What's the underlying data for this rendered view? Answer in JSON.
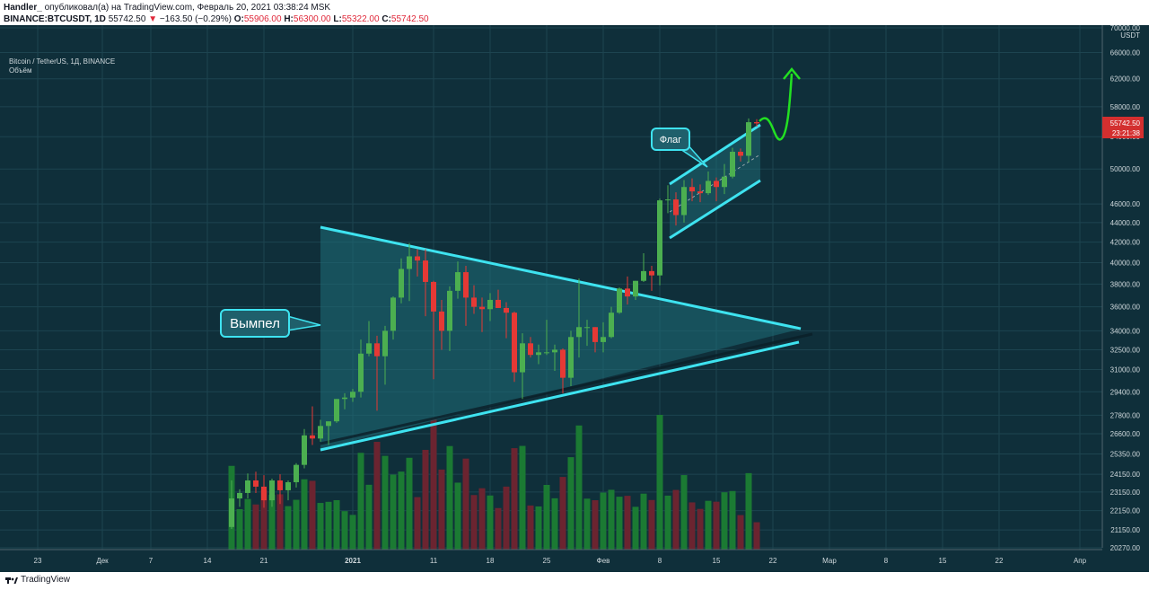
{
  "header": {
    "line1_user": "Handler_",
    "line1_rest": "опубликовал(а) на TradingView.com, Февраль 20, 2021 03:38:24 MSK",
    "line2_symbol": "BINANCE:BTCUSDT, 1D",
    "line2_last": "55742.50",
    "line2_arrow": "▼",
    "line2_change": "−163.50 (−0.29%)",
    "o_label": "O:",
    "o_value": "55906.00",
    "h_label": "H:",
    "h_value": "56300.00",
    "l_label": "L:",
    "l_value": "55322.00",
    "c_label": "C:",
    "c_value": "55742.50"
  },
  "legend": {
    "title": "Bitcoin / TetherUS, 1Д, BINANCE",
    "volume": "Объём"
  },
  "footer": {
    "brand": "TradingView"
  },
  "colors": {
    "bg": "#0f2f3a",
    "up": "#4caf50",
    "down": "#e53935",
    "vol_up": "#1b7a33",
    "vol_down": "#6b2430",
    "pattern_line": "#3ee3f0",
    "pattern_fill": "#1f6e78",
    "forecast": "#22e022",
    "label_bg": "#1f5f6b"
  },
  "chart_data": {
    "type": "candlestick",
    "title": "Bitcoin / TetherUS, 1Д, BINANCE",
    "ylabel": "USDT",
    "y_scale": "log",
    "ylim": [
      20270,
      70000
    ],
    "y_ticks": [
      {
        "value": 70000,
        "label": "70000.00"
      },
      {
        "value": 66000,
        "label": "66000.00"
      },
      {
        "value": 62000,
        "label": "62000.00"
      },
      {
        "value": 58000,
        "label": "58000.00"
      },
      {
        "value": 54000,
        "label": "54000.00"
      },
      {
        "value": 50000,
        "label": "50000.00"
      },
      {
        "value": 46000,
        "label": "46000.00"
      },
      {
        "value": 44000,
        "label": "44000.00"
      },
      {
        "value": 42000,
        "label": "42000.00"
      },
      {
        "value": 40000,
        "label": "40000.00"
      },
      {
        "value": 38000,
        "label": "38000.00"
      },
      {
        "value": 36000,
        "label": "36000.00"
      },
      {
        "value": 34000,
        "label": "34000.00"
      },
      {
        "value": 32500,
        "label": "32500.00"
      },
      {
        "value": 31000,
        "label": "31000.00"
      },
      {
        "value": 29400,
        "label": "29400.00"
      },
      {
        "value": 27800,
        "label": "27800.00"
      },
      {
        "value": 26600,
        "label": "26600.00"
      },
      {
        "value": 25350,
        "label": "25350.00"
      },
      {
        "value": 24150,
        "label": "24150.00"
      },
      {
        "value": 23150,
        "label": "23150.00"
      },
      {
        "value": 22150,
        "label": "22150.00"
      },
      {
        "value": 21150,
        "label": "21150.00"
      },
      {
        "value": 20270,
        "label": "20270.00"
      }
    ],
    "x_ticks": [
      {
        "date": "2020-11-23",
        "label": "23"
      },
      {
        "date": "2020-12-01",
        "label": "Дек"
      },
      {
        "date": "2020-12-07",
        "label": "7"
      },
      {
        "date": "2020-12-14",
        "label": "14"
      },
      {
        "date": "2020-12-21",
        "label": "21"
      },
      {
        "date": "2021-01-01",
        "label": "2021"
      },
      {
        "date": "2021-01-11",
        "label": "11"
      },
      {
        "date": "2021-01-18",
        "label": "18"
      },
      {
        "date": "2021-01-25",
        "label": "25"
      },
      {
        "date": "2021-02-01",
        "label": "Фев"
      },
      {
        "date": "2021-02-08",
        "label": "8"
      },
      {
        "date": "2021-02-15",
        "label": "15"
      },
      {
        "date": "2021-02-22",
        "label": "22"
      },
      {
        "date": "2021-03-01",
        "label": "Мар"
      },
      {
        "date": "2021-03-08",
        "label": "8"
      },
      {
        "date": "2021-03-15",
        "label": "15"
      },
      {
        "date": "2021-03-22",
        "label": "22"
      },
      {
        "date": "2021-04-01",
        "label": "Апр"
      }
    ],
    "price_badge": {
      "value": "55742.50",
      "countdown": "23:21:38"
    },
    "annotations": [
      {
        "text": "Вымпел"
      },
      {
        "text": "Флаг"
      }
    ],
    "candles": [
      {
        "date": "2020-12-17",
        "o": 21300,
        "h": 23800,
        "l": 21200,
        "c": 22800
      },
      {
        "date": "2020-12-18",
        "o": 22800,
        "h": 23300,
        "l": 22350,
        "c": 23100
      },
      {
        "date": "2020-12-19",
        "o": 23100,
        "h": 24200,
        "l": 22800,
        "c": 23800
      },
      {
        "date": "2020-12-20",
        "o": 23800,
        "h": 24300,
        "l": 23100,
        "c": 23450
      },
      {
        "date": "2020-12-21",
        "o": 23450,
        "h": 24100,
        "l": 22300,
        "c": 22700
      },
      {
        "date": "2020-12-22",
        "o": 22700,
        "h": 23900,
        "l": 22350,
        "c": 23800
      },
      {
        "date": "2020-12-23",
        "o": 23800,
        "h": 24150,
        "l": 22500,
        "c": 23250
      },
      {
        "date": "2020-12-24",
        "o": 23250,
        "h": 23800,
        "l": 22700,
        "c": 23700
      },
      {
        "date": "2020-12-25",
        "o": 23700,
        "h": 24800,
        "l": 23400,
        "c": 24700
      },
      {
        "date": "2020-12-26",
        "o": 24700,
        "h": 26900,
        "l": 24500,
        "c": 26500
      },
      {
        "date": "2020-12-27",
        "o": 26500,
        "h": 28400,
        "l": 25900,
        "c": 26300
      },
      {
        "date": "2020-12-28",
        "o": 26300,
        "h": 27500,
        "l": 26100,
        "c": 27100
      },
      {
        "date": "2020-12-29",
        "o": 27100,
        "h": 27400,
        "l": 25900,
        "c": 27400
      },
      {
        "date": "2020-12-30",
        "o": 27400,
        "h": 28900,
        "l": 27300,
        "c": 28900
      },
      {
        "date": "2020-12-31",
        "o": 28900,
        "h": 29300,
        "l": 28200,
        "c": 29000
      },
      {
        "date": "2021-01-01",
        "o": 29000,
        "h": 29600,
        "l": 28700,
        "c": 29400
      },
      {
        "date": "2021-01-02",
        "o": 29400,
        "h": 33300,
        "l": 29000,
        "c": 32200
      },
      {
        "date": "2021-01-03",
        "o": 32200,
        "h": 34800,
        "l": 32000,
        "c": 33000
      },
      {
        "date": "2021-01-04",
        "o": 33000,
        "h": 33600,
        "l": 28100,
        "c": 32000
      },
      {
        "date": "2021-01-05",
        "o": 32000,
        "h": 34400,
        "l": 29900,
        "c": 34000
      },
      {
        "date": "2021-01-06",
        "o": 34000,
        "h": 36900,
        "l": 33300,
        "c": 36800
      },
      {
        "date": "2021-01-07",
        "o": 36800,
        "h": 40400,
        "l": 36300,
        "c": 39400
      },
      {
        "date": "2021-01-08",
        "o": 39400,
        "h": 41900,
        "l": 36500,
        "c": 40600
      },
      {
        "date": "2021-01-09",
        "o": 40600,
        "h": 41300,
        "l": 38700,
        "c": 40200
      },
      {
        "date": "2021-01-10",
        "o": 40200,
        "h": 41300,
        "l": 35200,
        "c": 38200
      },
      {
        "date": "2021-01-11",
        "o": 38200,
        "h": 38300,
        "l": 30300,
        "c": 35600
      },
      {
        "date": "2021-01-12",
        "o": 35600,
        "h": 36600,
        "l": 32500,
        "c": 34000
      },
      {
        "date": "2021-01-13",
        "o": 34000,
        "h": 37800,
        "l": 32400,
        "c": 37400
      },
      {
        "date": "2021-01-14",
        "o": 37400,
        "h": 40100,
        "l": 36700,
        "c": 39100
      },
      {
        "date": "2021-01-15",
        "o": 39100,
        "h": 39700,
        "l": 34400,
        "c": 36800
      },
      {
        "date": "2021-01-16",
        "o": 36800,
        "h": 37900,
        "l": 35400,
        "c": 36000
      },
      {
        "date": "2021-01-17",
        "o": 36000,
        "h": 36800,
        "l": 33900,
        "c": 35800
      },
      {
        "date": "2021-01-18",
        "o": 35800,
        "h": 37200,
        "l": 34800,
        "c": 36600
      },
      {
        "date": "2021-01-19",
        "o": 36600,
        "h": 37500,
        "l": 35900,
        "c": 35900
      },
      {
        "date": "2021-01-20",
        "o": 35900,
        "h": 36400,
        "l": 33400,
        "c": 35500
      },
      {
        "date": "2021-01-21",
        "o": 35500,
        "h": 35600,
        "l": 30100,
        "c": 30800
      },
      {
        "date": "2021-01-22",
        "o": 30800,
        "h": 33800,
        "l": 28900,
        "c": 33000
      },
      {
        "date": "2021-01-23",
        "o": 33000,
        "h": 33500,
        "l": 31900,
        "c": 32100
      },
      {
        "date": "2021-01-24",
        "o": 32100,
        "h": 32900,
        "l": 31400,
        "c": 32300
      },
      {
        "date": "2021-01-25",
        "o": 32300,
        "h": 34900,
        "l": 32100,
        "c": 32300
      },
      {
        "date": "2021-01-26",
        "o": 32300,
        "h": 32900,
        "l": 30900,
        "c": 32500
      },
      {
        "date": "2021-01-27",
        "o": 32500,
        "h": 32600,
        "l": 29300,
        "c": 30400
      },
      {
        "date": "2021-01-28",
        "o": 30400,
        "h": 34000,
        "l": 29800,
        "c": 33500
      },
      {
        "date": "2021-01-29",
        "o": 33500,
        "h": 38500,
        "l": 31900,
        "c": 34300
      },
      {
        "date": "2021-01-30",
        "o": 34300,
        "h": 34900,
        "l": 32800,
        "c": 34300
      },
      {
        "date": "2021-01-31",
        "o": 34300,
        "h": 34300,
        "l": 32300,
        "c": 33100
      },
      {
        "date": "2021-02-01",
        "o": 33100,
        "h": 34700,
        "l": 32300,
        "c": 33500
      },
      {
        "date": "2021-02-02",
        "o": 33500,
        "h": 36000,
        "l": 33400,
        "c": 35500
      },
      {
        "date": "2021-02-03",
        "o": 35500,
        "h": 37700,
        "l": 35400,
        "c": 37600
      },
      {
        "date": "2021-02-04",
        "o": 37600,
        "h": 38700,
        "l": 36200,
        "c": 36900
      },
      {
        "date": "2021-02-05",
        "o": 36900,
        "h": 38300,
        "l": 36600,
        "c": 38300
      },
      {
        "date": "2021-02-06",
        "o": 38300,
        "h": 40900,
        "l": 38200,
        "c": 39200
      },
      {
        "date": "2021-02-07",
        "o": 39200,
        "h": 39700,
        "l": 37400,
        "c": 38800
      },
      {
        "date": "2021-02-08",
        "o": 38800,
        "h": 46600,
        "l": 37900,
        "c": 46400
      },
      {
        "date": "2021-02-09",
        "o": 46400,
        "h": 48100,
        "l": 45000,
        "c": 46500
      },
      {
        "date": "2021-02-10",
        "o": 46500,
        "h": 47300,
        "l": 43700,
        "c": 44800
      },
      {
        "date": "2021-02-11",
        "o": 44800,
        "h": 48700,
        "l": 44000,
        "c": 47900
      },
      {
        "date": "2021-02-12",
        "o": 47900,
        "h": 48900,
        "l": 46300,
        "c": 47400
      },
      {
        "date": "2021-02-13",
        "o": 47400,
        "h": 48200,
        "l": 46200,
        "c": 47200
      },
      {
        "date": "2021-02-14",
        "o": 47200,
        "h": 49700,
        "l": 47000,
        "c": 48600
      },
      {
        "date": "2021-02-15",
        "o": 48600,
        "h": 49000,
        "l": 46300,
        "c": 47900
      },
      {
        "date": "2021-02-16",
        "o": 47900,
        "h": 50600,
        "l": 47100,
        "c": 49100
      },
      {
        "date": "2021-02-17",
        "o": 49100,
        "h": 52600,
        "l": 48900,
        "c": 52100
      },
      {
        "date": "2021-02-18",
        "o": 52100,
        "h": 52500,
        "l": 50900,
        "c": 51600
      },
      {
        "date": "2021-02-19",
        "o": 51600,
        "h": 56400,
        "l": 50800,
        "c": 55900
      },
      {
        "date": "2021-02-20",
        "o": 55906,
        "h": 56300,
        "l": 55322,
        "c": 55742.5
      }
    ]
  }
}
